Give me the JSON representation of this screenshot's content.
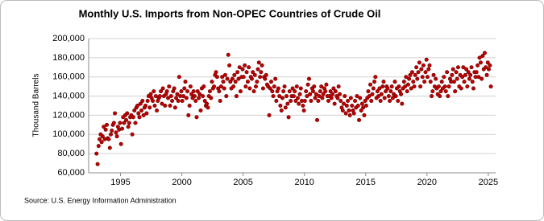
{
  "chart_data": {
    "type": "scatter",
    "title": "Monthly U.S. Imports from Non-OPEC Countries of Crude Oil",
    "y_label": "Thousand Barrels",
    "source": "Source: U.S. Energy Information Administration",
    "grid": true,
    "xlim": [
      1992.4,
      2025.6
    ],
    "xticks": [
      1995,
      2000,
      2005,
      2010,
      2015,
      2020,
      2025
    ],
    "ylim": [
      60000,
      200000
    ],
    "yticks": [
      {
        "value": 60000,
        "label": "60,000"
      },
      {
        "value": 80000,
        "label": "80,000"
      },
      {
        "value": 100000,
        "label": "100,000"
      },
      {
        "value": 120000,
        "label": "120,000"
      },
      {
        "value": 140000,
        "label": "140,000"
      },
      {
        "value": 160000,
        "label": "160,000"
      },
      {
        "value": 180000,
        "label": "180,000"
      },
      {
        "value": 200000,
        "label": "200,000"
      }
    ],
    "series": [
      {
        "color": "#c00000",
        "x": [
          1993.04,
          1993.13,
          1993.21,
          1993.29,
          1993.38,
          1993.46,
          1993.54,
          1993.63,
          1993.71,
          1993.79,
          1993.88,
          1993.96,
          1994.04,
          1994.13,
          1994.21,
          1994.29,
          1994.38,
          1994.46,
          1994.54,
          1994.63,
          1994.71,
          1994.79,
          1994.88,
          1994.96,
          1995.04,
          1995.13,
          1995.21,
          1995.29,
          1995.38,
          1995.46,
          1995.54,
          1995.63,
          1995.71,
          1995.79,
          1995.88,
          1995.96,
          1996.04,
          1996.13,
          1996.21,
          1996.29,
          1996.38,
          1996.46,
          1996.54,
          1996.63,
          1996.71,
          1996.79,
          1996.88,
          1996.96,
          1997.04,
          1997.13,
          1997.21,
          1997.29,
          1997.38,
          1997.46,
          1997.54,
          1997.63,
          1997.71,
          1997.79,
          1997.88,
          1997.96,
          1998.04,
          1998.13,
          1998.21,
          1998.29,
          1998.38,
          1998.46,
          1998.54,
          1998.63,
          1998.71,
          1998.79,
          1998.88,
          1998.96,
          1999.04,
          1999.13,
          1999.21,
          1999.29,
          1999.38,
          1999.46,
          1999.54,
          1999.63,
          1999.71,
          1999.79,
          1999.88,
          1999.96,
          2000.04,
          2000.13,
          2000.21,
          2000.29,
          2000.38,
          2000.46,
          2000.54,
          2000.63,
          2000.71,
          2000.79,
          2000.88,
          2000.96,
          2001.04,
          2001.13,
          2001.21,
          2001.29,
          2001.38,
          2001.46,
          2001.54,
          2001.63,
          2001.71,
          2001.79,
          2001.88,
          2001.96,
          2002.04,
          2002.13,
          2002.21,
          2002.29,
          2002.38,
          2002.46,
          2002.54,
          2002.63,
          2002.71,
          2002.79,
          2002.88,
          2002.96,
          2003.04,
          2003.13,
          2003.21,
          2003.29,
          2003.38,
          2003.46,
          2003.54,
          2003.63,
          2003.71,
          2003.79,
          2003.88,
          2003.96,
          2004.04,
          2004.13,
          2004.21,
          2004.29,
          2004.38,
          2004.46,
          2004.54,
          2004.63,
          2004.71,
          2004.79,
          2004.88,
          2004.96,
          2005.04,
          2005.13,
          2005.21,
          2005.29,
          2005.38,
          2005.46,
          2005.54,
          2005.63,
          2005.71,
          2005.79,
          2005.88,
          2005.96,
          2006.04,
          2006.13,
          2006.21,
          2006.29,
          2006.38,
          2006.46,
          2006.54,
          2006.63,
          2006.71,
          2006.79,
          2006.88,
          2006.96,
          2007.04,
          2007.13,
          2007.21,
          2007.29,
          2007.38,
          2007.46,
          2007.54,
          2007.63,
          2007.71,
          2007.79,
          2007.88,
          2007.96,
          2008.04,
          2008.13,
          2008.21,
          2008.29,
          2008.38,
          2008.46,
          2008.54,
          2008.63,
          2008.71,
          2008.79,
          2008.88,
          2008.96,
          2009.04,
          2009.13,
          2009.21,
          2009.29,
          2009.38,
          2009.46,
          2009.54,
          2009.63,
          2009.71,
          2009.79,
          2009.88,
          2009.96,
          2010.04,
          2010.13,
          2010.21,
          2010.29,
          2010.38,
          2010.46,
          2010.54,
          2010.63,
          2010.71,
          2010.79,
          2010.88,
          2010.96,
          2011.04,
          2011.13,
          2011.21,
          2011.29,
          2011.38,
          2011.46,
          2011.54,
          2011.63,
          2011.71,
          2011.79,
          2011.88,
          2011.96,
          2012.04,
          2012.13,
          2012.21,
          2012.29,
          2012.38,
          2012.46,
          2012.54,
          2012.63,
          2012.71,
          2012.79,
          2012.88,
          2012.96,
          2013.04,
          2013.13,
          2013.21,
          2013.29,
          2013.38,
          2013.46,
          2013.54,
          2013.63,
          2013.71,
          2013.79,
          2013.88,
          2013.96,
          2014.04,
          2014.13,
          2014.21,
          2014.29,
          2014.38,
          2014.46,
          2014.54,
          2014.63,
          2014.71,
          2014.79,
          2014.88,
          2014.96,
          2015.04,
          2015.13,
          2015.21,
          2015.29,
          2015.38,
          2015.46,
          2015.54,
          2015.63,
          2015.71,
          2015.79,
          2015.88,
          2015.96,
          2016.04,
          2016.13,
          2016.21,
          2016.29,
          2016.38,
          2016.46,
          2016.54,
          2016.63,
          2016.71,
          2016.79,
          2016.88,
          2016.96,
          2017.04,
          2017.13,
          2017.21,
          2017.29,
          2017.38,
          2017.46,
          2017.54,
          2017.63,
          2017.71,
          2017.79,
          2017.88,
          2017.96,
          2018.04,
          2018.13,
          2018.21,
          2018.29,
          2018.38,
          2018.46,
          2018.54,
          2018.63,
          2018.71,
          2018.79,
          2018.88,
          2018.96,
          2019.04,
          2019.13,
          2019.21,
          2019.29,
          2019.38,
          2019.46,
          2019.54,
          2019.63,
          2019.71,
          2019.79,
          2019.88,
          2019.96,
          2020.04,
          2020.13,
          2020.21,
          2020.29,
          2020.38,
          2020.46,
          2020.54,
          2020.63,
          2020.71,
          2020.79,
          2020.88,
          2020.96,
          2021.04,
          2021.13,
          2021.21,
          2021.29,
          2021.38,
          2021.46,
          2021.54,
          2021.63,
          2021.71,
          2021.79,
          2021.88,
          2021.96,
          2022.04,
          2022.13,
          2022.21,
          2022.29,
          2022.38,
          2022.46,
          2022.54,
          2022.63,
          2022.71,
          2022.79,
          2022.88,
          2022.96,
          2023.04,
          2023.13,
          2023.21,
          2023.29,
          2023.38,
          2023.46,
          2023.54,
          2023.63,
          2023.71,
          2023.79,
          2023.88,
          2023.96,
          2024.04,
          2024.13,
          2024.21,
          2024.29,
          2024.38,
          2024.46,
          2024.54,
          2024.63,
          2024.71,
          2024.79,
          2024.88,
          2024.96,
          2025.04,
          2025.13,
          2025.21
        ],
        "values": [
          80000,
          69000,
          88000,
          95000,
          100000,
          92000,
          98000,
          108000,
          95000,
          105000,
          110000,
          96000,
          95000,
          86000,
          100000,
          104000,
          110000,
          112000,
          122000,
          102000,
          98000,
          108000,
          105000,
          112000,
          90000,
          106000,
          118000,
          112000,
          120000,
          115000,
          122000,
          108000,
          112000,
          118000,
          120000,
          100000,
          118000,
          125000,
          112000,
          128000,
          130000,
          122000,
          118000,
          132000,
          125000,
          135000,
          120000,
          128000,
          130000,
          122000,
          135000,
          140000,
          128000,
          142000,
          138000,
          135000,
          145000,
          130000,
          140000,
          125000,
          135000,
          138000,
          140000,
          145000,
          132000,
          148000,
          140000,
          130000,
          142000,
          145000,
          138000,
          150000,
          130000,
          140000,
          135000,
          145000,
          148000,
          128000,
          138000,
          142000,
          135000,
          160000,
          140000,
          145000,
          135000,
          140000,
          148000,
          155000,
          138000,
          145000,
          120000,
          130000,
          150000,
          142000,
          138000,
          145000,
          140000,
          135000,
          118000,
          145000,
          138000,
          142000,
          125000,
          148000,
          140000,
          150000,
          135000,
          130000,
          132000,
          128000,
          140000,
          145000,
          138000,
          155000,
          148000,
          150000,
          162000,
          165000,
          160000,
          148000,
          145000,
          135000,
          150000,
          160000,
          155000,
          148000,
          162000,
          140000,
          158000,
          183000,
          172000,
          155000,
          148000,
          158000,
          150000,
          162000,
          155000,
          140000,
          165000,
          158000,
          170000,
          145000,
          160000,
          168000,
          160000,
          172000,
          150000,
          165000,
          155000,
          170000,
          148000,
          160000,
          158000,
          165000,
          145000,
          162000,
          150000,
          155000,
          168000,
          175000,
          160000,
          165000,
          172000,
          148000,
          160000,
          158000,
          162000,
          152000,
          150000,
          120000,
          148000,
          155000,
          145000,
          140000,
          150000,
          158000,
          135000,
          145000,
          148000,
          140000,
          130000,
          125000,
          138000,
          145000,
          150000,
          128000,
          140000,
          132000,
          118000,
          145000,
          135000,
          140000,
          148000,
          140000,
          145000,
          135000,
          150000,
          138000,
          132000,
          142000,
          148000,
          135000,
          130000,
          125000,
          135000,
          145000,
          140000,
          152000,
          158000,
          142000,
          135000,
          148000,
          145000,
          150000,
          138000,
          142000,
          115000,
          135000,
          140000,
          145000,
          150000,
          138000,
          142000,
          148000,
          145000,
          152000,
          140000,
          135000,
          140000,
          145000,
          138000,
          142000,
          148000,
          132000,
          145000,
          140000,
          138000,
          150000,
          142000,
          135000,
          128000,
          125000,
          132000,
          140000,
          122000,
          130000,
          135000,
          125000,
          120000,
          138000,
          130000,
          125000,
          122000,
          135000,
          128000,
          140000,
          130000,
          115000,
          138000,
          125000,
          132000,
          128000,
          120000,
          135000,
          130000,
          138000,
          145000,
          140000,
          152000,
          135000,
          142000,
          148000,
          155000,
          160000,
          138000,
          145000,
          140000,
          148000,
          135000,
          142000,
          150000,
          155000,
          138000,
          145000,
          150000,
          148000,
          140000,
          135000,
          145000,
          150000,
          138000,
          142000,
          155000,
          140000,
          148000,
          135000,
          150000,
          145000,
          142000,
          132000,
          148000,
          155000,
          150000,
          160000,
          145000,
          152000,
          158000,
          162000,
          148000,
          165000,
          155000,
          150000,
          162000,
          170000,
          158000,
          165000,
          175000,
          150000,
          168000,
          160000,
          172000,
          155000,
          165000,
          178000,
          160000,
          168000,
          172000,
          155000,
          140000,
          145000,
          162000,
          150000,
          158000,
          148000,
          142000,
          150000,
          140000,
          145000,
          155000,
          148000,
          160000,
          150000,
          145000,
          165000,
          140000,
          150000,
          158000,
          155000,
          162000,
          168000,
          155000,
          145000,
          165000,
          158000,
          170000,
          150000,
          162000,
          148000,
          160000,
          170000,
          155000,
          162000,
          168000,
          150000,
          165000,
          158000,
          162000,
          170000,
          155000,
          148000,
          165000,
          160000,
          165000,
          172000,
          160000,
          180000,
          175000,
          158000,
          182000,
          168000,
          185000,
          170000,
          162000,
          175000,
          168000,
          172000,
          150000
        ]
      }
    ]
  }
}
